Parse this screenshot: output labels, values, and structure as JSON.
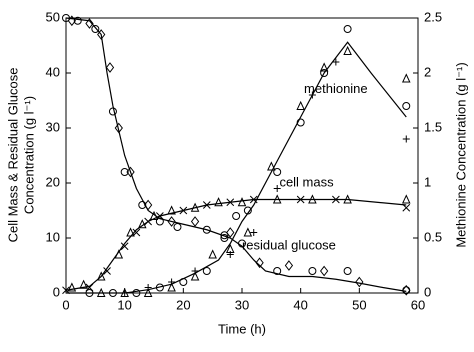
{
  "chart_data": {
    "type": "scatter",
    "xlabel": "Time (h)",
    "ylabel": [
      "Cell Mass & Residual Glucose",
      "Concentration (g l⁻¹)"
    ],
    "y2label": "Methionine Concentration (g l⁻¹)",
    "xlim": [
      0,
      60
    ],
    "xticks": [
      0,
      10,
      20,
      30,
      40,
      50,
      60
    ],
    "ylim": [
      0,
      50
    ],
    "yticks": [
      0,
      10,
      20,
      30,
      40,
      50
    ],
    "y2lim": [
      0,
      2.5
    ],
    "y2ticks": [
      0,
      0.5,
      1,
      1.5,
      2,
      2.5
    ],
    "color": "#000000",
    "annotations": [
      {
        "text": "methionine",
        "x": 46,
        "y": 1.85,
        "axis": "y2"
      },
      {
        "text": "cell mass",
        "x": 41,
        "y": 20,
        "axis": "y"
      },
      {
        "text": "residual glucose",
        "x": 38,
        "y": 8.5,
        "axis": "y"
      }
    ],
    "series": [
      {
        "marker": "line",
        "axis": "y",
        "x": [
          0,
          4,
          6,
          7,
          8,
          10,
          12,
          14,
          16,
          20,
          24,
          28,
          30,
          32,
          34,
          38,
          42,
          46,
          50,
          54,
          58
        ],
        "values": [
          50,
          49.5,
          47,
          40,
          34,
          25,
          19,
          15,
          13.5,
          12.5,
          11.5,
          10,
          8.5,
          6,
          4,
          3,
          3,
          2.5,
          1.8,
          1,
          0.3
        ]
      },
      {
        "marker": "line",
        "axis": "y",
        "x": [
          0,
          4,
          6,
          8,
          10,
          12,
          14,
          16,
          20,
          24,
          28,
          32,
          40,
          48,
          58
        ],
        "values": [
          0.5,
          1.2,
          3,
          6,
          9,
          11.5,
          13,
          14,
          15,
          16,
          16.5,
          17,
          17,
          17,
          16
        ]
      },
      {
        "marker": "line",
        "axis": "y2",
        "x": [
          0,
          6,
          10,
          14,
          18,
          22,
          26,
          28,
          30,
          32,
          36,
          40,
          44,
          48,
          52,
          58
        ],
        "values": [
          0,
          0,
          0,
          0.03,
          0.08,
          0.18,
          0.3,
          0.45,
          0.65,
          0.8,
          1.2,
          1.6,
          2.0,
          2.28,
          2.0,
          1.6
        ]
      },
      {
        "marker": "circle",
        "axis": "y",
        "x": [
          0,
          2,
          5,
          8,
          10,
          13,
          16,
          19,
          24,
          27,
          30,
          36,
          42,
          48,
          58
        ],
        "values": [
          50,
          49.5,
          48,
          33,
          22,
          16,
          13,
          12,
          11.5,
          10.5,
          9,
          4,
          4,
          4,
          0.5
        ]
      },
      {
        "marker": "diamond",
        "axis": "y",
        "x": [
          1,
          4,
          6,
          7.5,
          9,
          11,
          14,
          18,
          22,
          28,
          33,
          38,
          44,
          50,
          58
        ],
        "values": [
          49.5,
          49,
          47,
          41,
          30,
          22,
          16,
          13,
          13,
          11,
          5.5,
          5,
          4,
          2,
          0.5
        ]
      },
      {
        "marker": "triangle",
        "axis": "y",
        "x": [
          1,
          3,
          6,
          9,
          11,
          13,
          15,
          18,
          22,
          26,
          30,
          36,
          42,
          48,
          58
        ],
        "values": [
          1,
          1.5,
          3,
          7,
          11,
          12.5,
          14,
          15,
          15.5,
          16.5,
          16.5,
          17,
          17,
          17,
          17
        ]
      },
      {
        "marker": "cross",
        "axis": "y",
        "x": [
          0,
          4,
          7,
          10,
          12,
          14,
          16,
          20,
          24,
          28,
          32,
          40,
          46,
          58
        ],
        "values": [
          0.5,
          1,
          4,
          8.5,
          11,
          13,
          14,
          15,
          16,
          16.5,
          17,
          17,
          17,
          15.5
        ]
      },
      {
        "marker": "circle",
        "axis": "y2",
        "x": [
          4,
          8,
          12,
          16,
          20,
          24,
          27,
          29,
          31,
          36,
          40,
          44,
          48,
          58
        ],
        "values": [
          0,
          0,
          0,
          0.05,
          0.1,
          0.2,
          0.5,
          0.7,
          0.75,
          1.1,
          1.55,
          2.0,
          2.4,
          1.7
        ]
      },
      {
        "marker": "triangle",
        "axis": "y2",
        "x": [
          6,
          10,
          14,
          18,
          22,
          25,
          28,
          31,
          35,
          40,
          44,
          48,
          58
        ],
        "values": [
          0,
          0,
          0,
          0.05,
          0.15,
          0.35,
          0.4,
          0.55,
          1.15,
          1.7,
          2.05,
          2.2,
          1.95
        ]
      },
      {
        "marker": "plus",
        "axis": "y2",
        "x": [
          10,
          14,
          18,
          22,
          28,
          32,
          36,
          42,
          46,
          58
        ],
        "values": [
          0,
          0.05,
          0.1,
          0.2,
          0.35,
          0.55,
          0.95,
          1.8,
          2.1,
          1.4
        ]
      }
    ]
  }
}
